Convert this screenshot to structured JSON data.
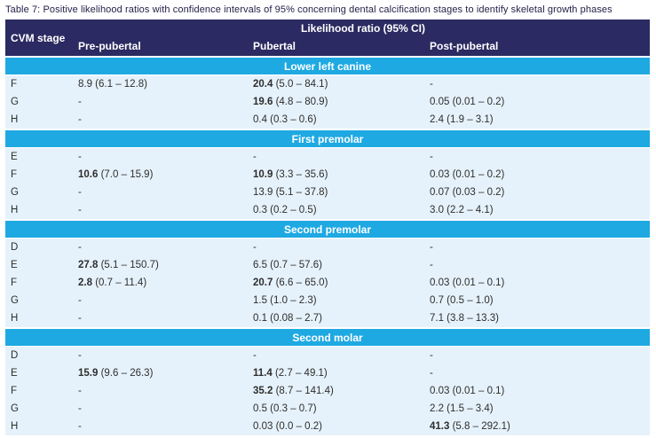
{
  "caption": "Table 7: Positive likelihood ratios with confidence intervals of 95% concerning dental calcification stages to identify skeletal growth phases",
  "colors": {
    "header_navy": "#2b2a62",
    "section_cyan": "#1fa9e2",
    "row_light_blue": "#e6f2fb",
    "header_text": "#ffffff",
    "body_text": "#2d2d2d"
  },
  "table": {
    "header": {
      "stage_col": "CVM stage",
      "group": "Likelihood ratio (95% CI)",
      "columns": [
        "Pre-pubertal",
        "Pubertal",
        "Post-pubertal"
      ]
    },
    "sections": [
      {
        "title": "Lower left canine",
        "rows": [
          {
            "stage": "F",
            "cells": [
              {
                "main": "8.9",
                "ci": "(6.1 – 12.8)",
                "bold": false
              },
              {
                "main": "20.4",
                "ci": "(5.0 – 84.1)",
                "bold": true
              },
              {
                "main": "-"
              }
            ]
          },
          {
            "stage": "G",
            "cells": [
              {
                "main": "-"
              },
              {
                "main": "19.6",
                "ci": "(4.8 – 80.9)",
                "bold": true
              },
              {
                "main": "0.05",
                "ci": "(0.01 – 0.2)",
                "bold": false
              }
            ]
          },
          {
            "stage": "H",
            "cells": [
              {
                "main": "-"
              },
              {
                "main": "0.4",
                "ci": "(0.3 – 0.6)",
                "bold": false
              },
              {
                "main": "2.4",
                "ci": "(1.9 – 3.1)",
                "bold": false
              }
            ]
          }
        ]
      },
      {
        "title": "First premolar",
        "rows": [
          {
            "stage": "E",
            "cells": [
              {
                "main": "-"
              },
              {
                "main": "-"
              },
              {
                "main": "-"
              }
            ]
          },
          {
            "stage": "F",
            "cells": [
              {
                "main": "10.6",
                "ci": "(7.0 – 15.9)",
                "bold": true
              },
              {
                "main": "10.9",
                "ci": "(3.3 – 35.6)",
                "bold": true
              },
              {
                "main": "0.03",
                "ci": "(0.01 – 0.2)",
                "bold": false
              }
            ]
          },
          {
            "stage": "G",
            "cells": [
              {
                "main": "-"
              },
              {
                "main": "13.9",
                "ci": "(5.1 – 37.8)",
                "bold": false
              },
              {
                "main": "0.07",
                "ci": "(0.03 – 0.2)",
                "bold": false
              }
            ]
          },
          {
            "stage": "H",
            "cells": [
              {
                "main": "-"
              },
              {
                "main": "0.3",
                "ci": "(0.2 – 0.5)",
                "bold": false
              },
              {
                "main": "3.0",
                "ci": "(2.2 – 4.1)",
                "bold": false
              }
            ]
          }
        ]
      },
      {
        "title": "Second premolar",
        "rows": [
          {
            "stage": "D",
            "cells": [
              {
                "main": "-"
              },
              {
                "main": "-"
              },
              {
                "main": "-"
              }
            ]
          },
          {
            "stage": "E",
            "cells": [
              {
                "main": "27.8",
                "ci": "(5.1 – 150.7)",
                "bold": true
              },
              {
                "main": "6.5",
                "ci": "(0.7 – 57.6)",
                "bold": false
              },
              {
                "main": "-"
              }
            ]
          },
          {
            "stage": "F",
            "cells": [
              {
                "main": "2.8",
                "ci": "(0.7 – 11.4)",
                "bold": true
              },
              {
                "main": "20.7",
                "ci": "(6.6 – 65.0)",
                "bold": true
              },
              {
                "main": "0.03",
                "ci": "(0.01 – 0.1)",
                "bold": false
              }
            ]
          },
          {
            "stage": "G",
            "cells": [
              {
                "main": "-"
              },
              {
                "main": "1.5",
                "ci": "(1.0 – 2.3)",
                "bold": false
              },
              {
                "main": "0.7",
                "ci": "(0.5 – 1.0)",
                "bold": false
              }
            ]
          },
          {
            "stage": "H",
            "cells": [
              {
                "main": "-"
              },
              {
                "main": "0.1",
                "ci": "(0.08 – 2.7)",
                "bold": false
              },
              {
                "main": "7.1",
                "ci": "(3.8 – 13.3)",
                "bold": false
              }
            ]
          }
        ]
      },
      {
        "title": "Second molar",
        "rows": [
          {
            "stage": "D",
            "cells": [
              {
                "main": "-"
              },
              {
                "main": "-"
              },
              {
                "main": "-"
              }
            ]
          },
          {
            "stage": "E",
            "cells": [
              {
                "main": "15.9",
                "ci": "(9.6 – 26.3)",
                "bold": true
              },
              {
                "main": "11.4",
                "ci": "(2.7 – 49.1)",
                "bold": true
              },
              {
                "main": "-"
              }
            ]
          },
          {
            "stage": "F",
            "cells": [
              {
                "main": "-"
              },
              {
                "main": "35.2",
                "ci": "(8.7 – 141.4)",
                "bold": true
              },
              {
                "main": "0.03",
                "ci": "(0.01 – 0.1)",
                "bold": false
              }
            ]
          },
          {
            "stage": "G",
            "cells": [
              {
                "main": "-"
              },
              {
                "main": "0.5",
                "ci": "(0.3 – 0.7)",
                "bold": false
              },
              {
                "main": "2.2",
                "ci": "(1.5 – 3.4)",
                "bold": false
              }
            ]
          },
          {
            "stage": "H",
            "cells": [
              {
                "main": "-"
              },
              {
                "main": "0.03",
                "ci": "(0.0 – 0.2)",
                "bold": false
              },
              {
                "main": "41.3",
                "ci": "(5.8 – 292.1)",
                "bold": true
              }
            ]
          }
        ]
      }
    ]
  }
}
